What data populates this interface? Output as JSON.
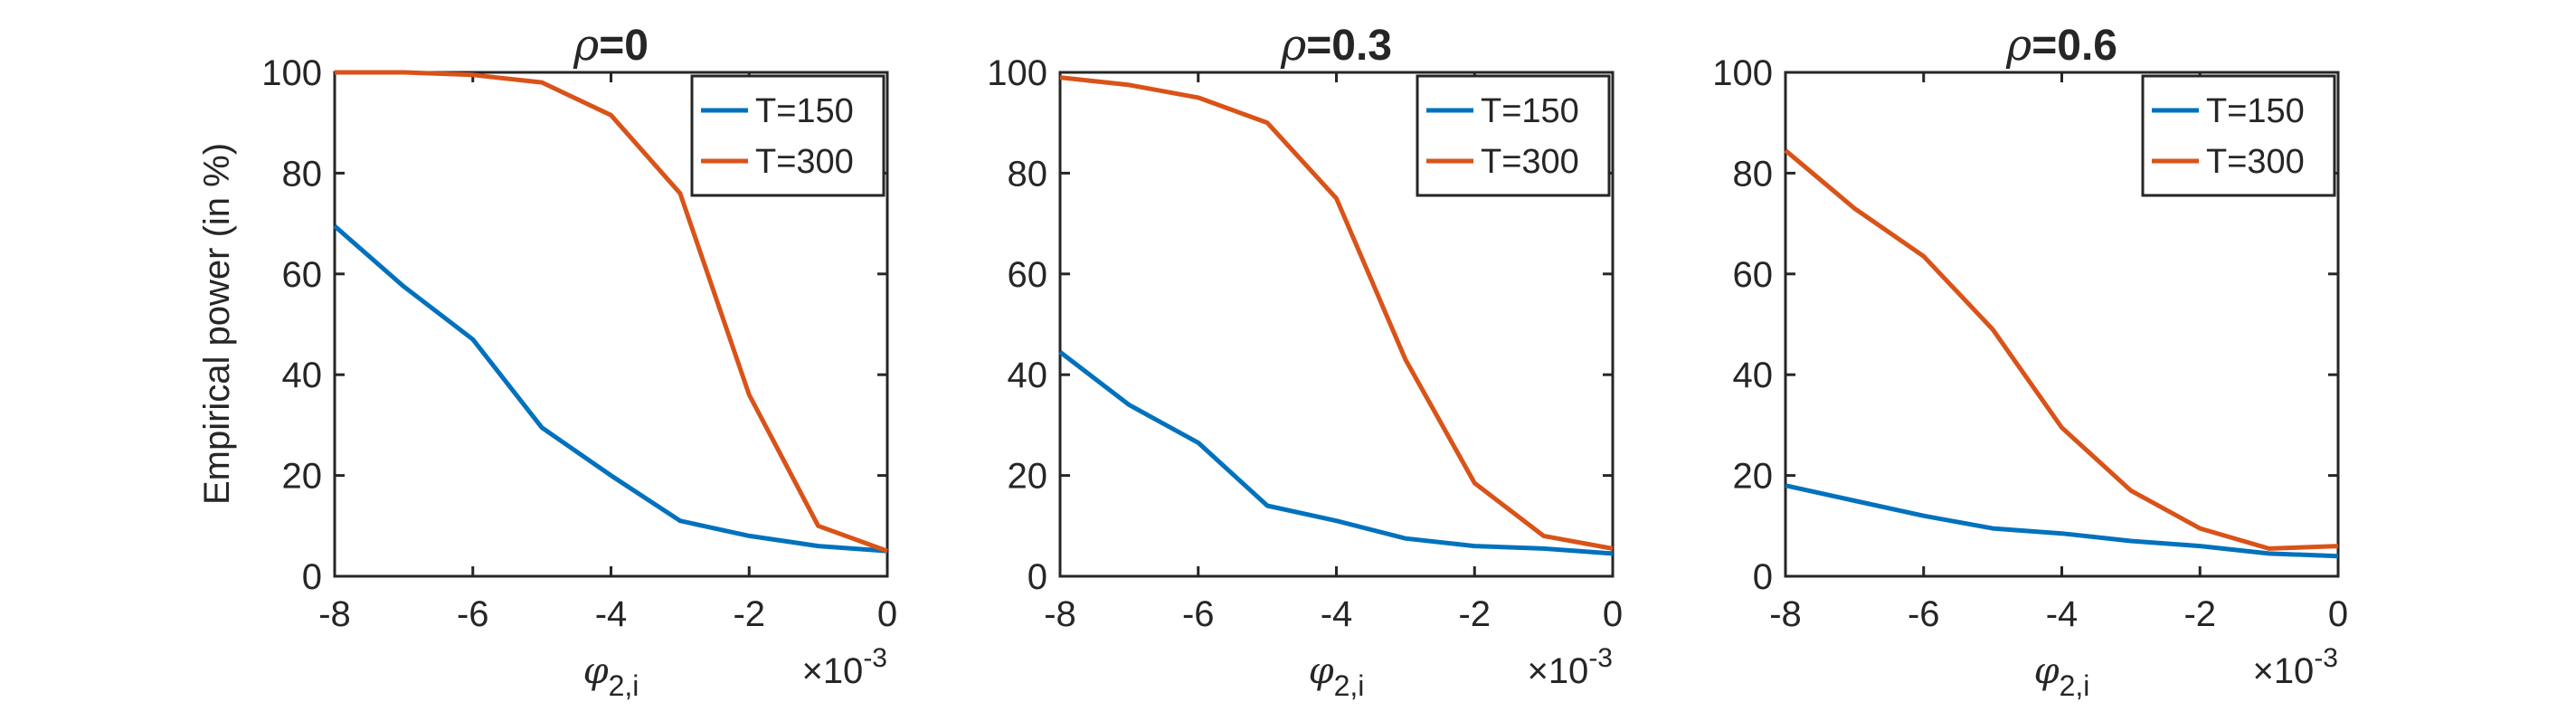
{
  "figure": {
    "ylabel": "Empirical power (in %)"
  },
  "colors": {
    "T150": "#0072BD",
    "T300": "#D95319",
    "axis": "#262626"
  },
  "chart_data": [
    {
      "type": "line",
      "title_symbol": "ρ",
      "title_value": "=0",
      "xlabel_symbol": "φ",
      "xlabel_subscript": "2,i",
      "x_multiplier_prefix": "×10",
      "x_multiplier_exp": "-3",
      "x": [
        -8,
        -7,
        -6,
        -5,
        -4,
        -3,
        -2,
        -1,
        0
      ],
      "xlim": [
        -8,
        0
      ],
      "ylim": [
        0,
        100
      ],
      "xticks": [
        -8,
        -6,
        -4,
        -2,
        0
      ],
      "yticks": [
        0,
        20,
        40,
        60,
        80,
        100
      ],
      "legend_position": "top-right",
      "series": [
        {
          "name": "T=150",
          "values": [
            69.5,
            57.5,
            47,
            29.5,
            20,
            11,
            8,
            6,
            5
          ]
        },
        {
          "name": "T=300",
          "values": [
            100,
            100,
            99.5,
            98,
            91.5,
            76,
            36,
            10,
            5
          ]
        }
      ]
    },
    {
      "type": "line",
      "title_symbol": "ρ",
      "title_value": "=0.3",
      "xlabel_symbol": "φ",
      "xlabel_subscript": "2,i",
      "x_multiplier_prefix": "×10",
      "x_multiplier_exp": "-3",
      "x": [
        -8,
        -7,
        -6,
        -5,
        -4,
        -3,
        -2,
        -1,
        0
      ],
      "xlim": [
        -8,
        0
      ],
      "ylim": [
        0,
        100
      ],
      "xticks": [
        -8,
        -6,
        -4,
        -2,
        0
      ],
      "yticks": [
        0,
        20,
        40,
        60,
        80,
        100
      ],
      "legend_position": "top-right",
      "series": [
        {
          "name": "T=150",
          "values": [
            44.5,
            34,
            26.5,
            14,
            11,
            7.5,
            6,
            5.5,
            4.5
          ]
        },
        {
          "name": "T=300",
          "values": [
            99,
            97.5,
            95,
            90,
            75,
            43,
            18.5,
            8,
            5.5
          ]
        }
      ]
    },
    {
      "type": "line",
      "title_symbol": "ρ",
      "title_value": "=0.6",
      "xlabel_symbol": "φ",
      "xlabel_subscript": "2,i",
      "x_multiplier_prefix": "×10",
      "x_multiplier_exp": "-3",
      "x": [
        -8,
        -7,
        -6,
        -5,
        -4,
        -3,
        -2,
        -1,
        0
      ],
      "xlim": [
        -8,
        0
      ],
      "ylim": [
        0,
        100
      ],
      "xticks": [
        -8,
        -6,
        -4,
        -2,
        0
      ],
      "yticks": [
        0,
        20,
        40,
        60,
        80,
        100
      ],
      "legend_position": "top-right",
      "series": [
        {
          "name": "T=150",
          "values": [
            18,
            15,
            12,
            9.5,
            8.5,
            7,
            6,
            4.5,
            4
          ]
        },
        {
          "name": "T=300",
          "values": [
            84.5,
            73,
            63.5,
            49,
            29.5,
            17,
            9.5,
            5.5,
            6
          ]
        }
      ]
    }
  ]
}
